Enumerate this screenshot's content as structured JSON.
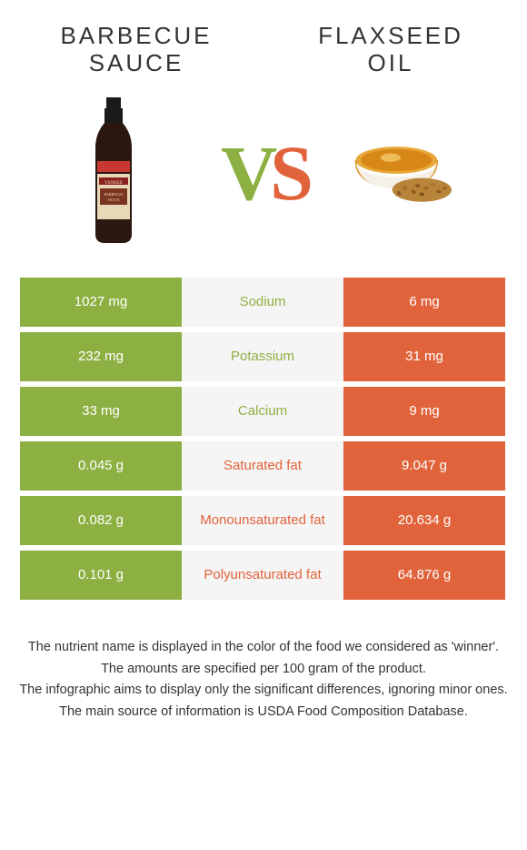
{
  "colors": {
    "left": "#8db042",
    "right": "#e1633b",
    "mid_bg": "#f5f5f5",
    "text_dark": "#333333"
  },
  "food_left": {
    "title_line1": "BARBECUE",
    "title_line2": "SAUCE"
  },
  "food_right": {
    "title_line1": "FLAXSEED",
    "title_line2": "OIL"
  },
  "vs": {
    "v": "V",
    "s": "S"
  },
  "rows": [
    {
      "left": "1027 mg",
      "mid": "Sodium",
      "right": "6 mg",
      "winner": "left"
    },
    {
      "left": "232 mg",
      "mid": "Potassium",
      "right": "31 mg",
      "winner": "left"
    },
    {
      "left": "33 mg",
      "mid": "Calcium",
      "right": "9 mg",
      "winner": "left"
    },
    {
      "left": "0.045 g",
      "mid": "Saturated fat",
      "right": "9.047 g",
      "winner": "right"
    },
    {
      "left": "0.082 g",
      "mid": "Monounsaturated fat",
      "right": "20.634 g",
      "winner": "right"
    },
    {
      "left": "0.101 g",
      "mid": "Polyunsaturated fat",
      "right": "64.876 g",
      "winner": "right"
    }
  ],
  "footer": {
    "l1": "The nutrient name is displayed in the color of the food we considered as 'winner'.",
    "l2": "The amounts are specified per 100 gram of the product.",
    "l3": "The infographic aims to display only the significant differences, ignoring minor ones.",
    "l4": "The main source of information is USDA Food Composition Database."
  }
}
